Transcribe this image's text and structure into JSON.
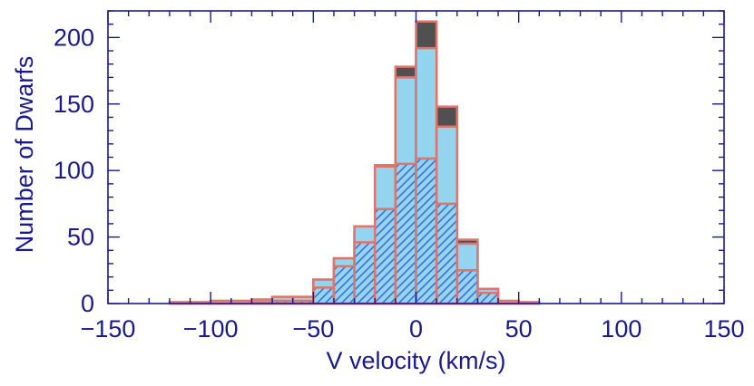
{
  "chart_data": {
    "type": "bar",
    "subtype": "stacked-histogram",
    "title": "",
    "xlabel": "V velocity (km/s)",
    "ylabel": "Number of Dwarfs",
    "xlim": [
      -150,
      150
    ],
    "ylim": [
      0,
      220
    ],
    "xticks": [
      -150,
      -100,
      -50,
      0,
      50,
      100,
      150
    ],
    "xtick_labels": [
      "−150",
      "−100",
      "−50",
      "0",
      "50",
      "100",
      "150"
    ],
    "yticks": [
      0,
      50,
      100,
      150,
      200
    ],
    "ytick_labels": [
      "0",
      "50",
      "100",
      "150",
      "200"
    ],
    "bin_width": 10,
    "bin_starts": [
      -120,
      -110,
      -100,
      -90,
      -80,
      -70,
      -60,
      -50,
      -40,
      -30,
      -20,
      -10,
      0,
      10,
      20,
      30,
      40,
      50
    ],
    "series": [
      {
        "name": "hatched",
        "values": [
          0,
          0,
          0,
          0,
          1,
          2,
          2,
          12,
          28,
          46,
          71,
          105,
          109,
          75,
          25,
          8,
          0,
          0
        ]
      },
      {
        "name": "light-blue",
        "values": [
          1,
          1,
          2,
          2,
          3,
          5,
          5,
          18,
          34,
          58,
          103,
          170,
          192,
          133,
          45,
          11,
          2,
          1
        ]
      },
      {
        "name": "dark-gray",
        "values": [
          1,
          1,
          2,
          2,
          3,
          5,
          5,
          18,
          34,
          58,
          104,
          178,
          212,
          148,
          48,
          11,
          2,
          1
        ]
      }
    ],
    "colors": {
      "axis": "#1a1a8c",
      "edge": "#e0736b",
      "light_blue": "#93d4ee",
      "dark_gray": "#505050",
      "hatch": "#3d6fd9"
    }
  }
}
